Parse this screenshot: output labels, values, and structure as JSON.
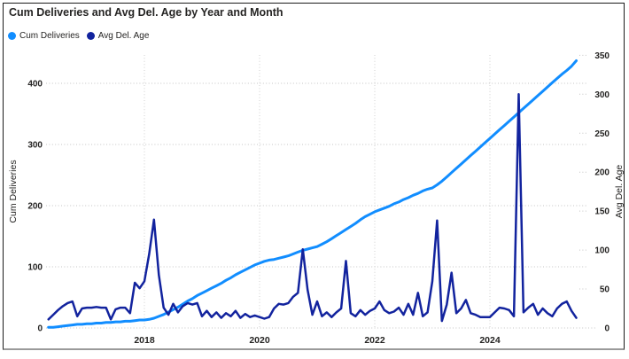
{
  "card": {
    "title": "Cum Deliveries and Avg Del. Age by Year and Month"
  },
  "legend": {
    "items": [
      {
        "label": "Cum Deliveries",
        "color": "#118DFF"
      },
      {
        "label": "Avg Del. Age",
        "color": "#12239E"
      }
    ]
  },
  "axes": {
    "left": {
      "title": "Cum Deliveries",
      "ticks": [
        0,
        100,
        200,
        300,
        400
      ]
    },
    "right": {
      "title": "Avg Del. Age",
      "ticks": [
        0,
        50,
        100,
        150,
        200,
        250,
        300,
        350
      ]
    },
    "x": {
      "tick_labels": [
        "2018",
        "2020",
        "2022",
        "2024"
      ]
    }
  },
  "chart_data": {
    "type": "line",
    "title": "Cum Deliveries and Avg Del. Age by Year and Month",
    "x_start": "2016-05",
    "x_interval": "month",
    "x_tick_years": [
      2018,
      2020,
      2022,
      2024
    ],
    "grid": "dotted",
    "legend_position": "top-left",
    "left_axis": {
      "label": "Cum Deliveries",
      "ylim": [
        0,
        435
      ]
    },
    "right_axis": {
      "label": "Avg Del. Age",
      "ylim": [
        0,
        350
      ]
    },
    "series": [
      {
        "name": "Cum Deliveries",
        "axis": "left",
        "color": "#118DFF",
        "values": [
          1,
          1,
          2,
          3,
          4,
          5,
          6,
          6,
          7,
          7,
          8,
          8,
          9,
          9,
          10,
          10,
          11,
          11,
          12,
          13,
          13,
          14,
          16,
          19,
          22,
          26,
          30,
          34,
          39,
          44,
          48,
          53,
          57,
          61,
          65,
          69,
          73,
          78,
          82,
          87,
          91,
          95,
          99,
          103,
          106,
          109,
          111,
          112,
          114,
          116,
          118,
          121,
          124,
          127,
          129,
          131,
          133,
          137,
          141,
          146,
          151,
          156,
          161,
          166,
          171,
          177,
          182,
          186,
          190,
          193,
          196,
          199,
          203,
          206,
          210,
          213,
          217,
          220,
          224,
          227,
          229,
          234,
          240,
          247,
          254,
          261,
          268,
          275,
          282,
          289,
          296,
          303,
          310,
          317,
          324,
          331,
          338,
          345,
          352,
          359,
          366,
          373,
          380,
          387,
          394,
          401,
          408,
          415,
          421,
          428,
          437
        ]
      },
      {
        "name": "Avg Del. Age",
        "axis": "right",
        "color": "#12239E",
        "values": [
          11,
          17,
          23,
          28,
          32,
          34,
          15,
          25,
          26,
          26,
          27,
          26,
          26,
          11,
          24,
          26,
          26,
          19,
          58,
          51,
          60,
          95,
          139,
          68,
          26,
          17,
          31,
          20,
          28,
          32,
          30,
          32,
          15,
          22,
          14,
          20,
          13,
          19,
          15,
          22,
          13,
          18,
          14,
          16,
          14,
          12,
          14,
          25,
          31,
          30,
          32,
          40,
          45,
          101,
          49,
          17,
          34,
          15,
          20,
          14,
          20,
          25,
          86,
          19,
          15,
          23,
          17,
          22,
          25,
          34,
          23,
          19,
          21,
          26,
          17,
          31,
          17,
          45,
          15,
          20,
          60,
          138,
          9,
          30,
          71,
          19,
          25,
          36,
          19,
          17,
          14,
          14,
          14,
          20,
          26,
          25,
          23,
          15,
          300,
          20,
          26,
          31,
          17,
          25,
          19,
          15,
          25,
          31,
          34,
          22,
          13
        ]
      }
    ]
  }
}
